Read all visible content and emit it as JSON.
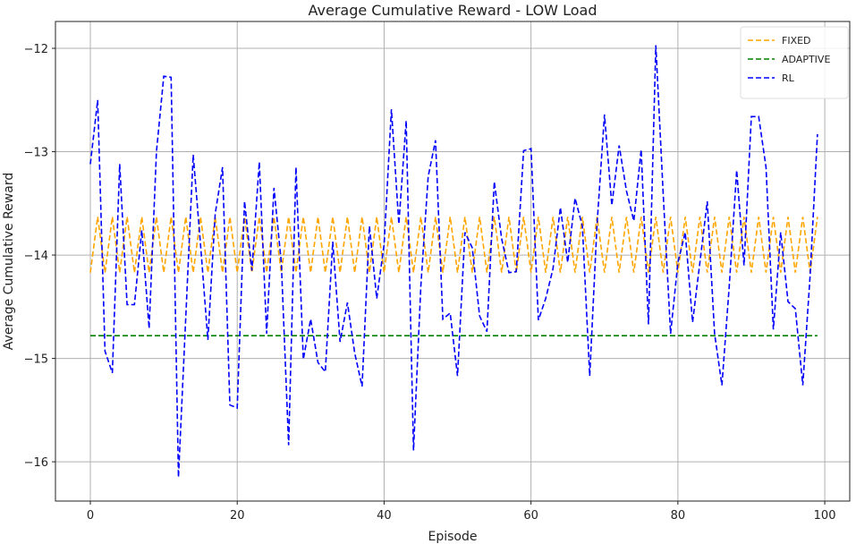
{
  "chart_data": {
    "type": "line",
    "title": "Average Cumulative Reward - LOW Load",
    "xlabel": "Episode",
    "ylabel": "Average Cumulative Reward",
    "xlim": [
      -4.75,
      103.4
    ],
    "ylim": [
      -16.38,
      -11.74
    ],
    "xticks": [
      0,
      20,
      40,
      60,
      80,
      100
    ],
    "yticks": [
      -12,
      -13,
      -14,
      -15,
      -16
    ],
    "ytick_labels": [
      "−12",
      "−13",
      "−14",
      "−15",
      "−16"
    ],
    "grid": true,
    "legend_position": "top-right",
    "x_start": 0,
    "series": [
      {
        "name": "FIXED",
        "color": "#ffa500",
        "style": "dashed",
        "pattern": [
          -14.17,
          -13.63
        ],
        "length": 100
      },
      {
        "name": "ADAPTIVE",
        "color": "#008000",
        "style": "dashed",
        "constant": -14.78,
        "length": 100
      },
      {
        "name": "RL",
        "color": "#0000ff",
        "style": "dashed",
        "values": [
          -13.12,
          -12.5,
          -14.93,
          -15.14,
          -13.12,
          -14.48,
          -14.48,
          -13.76,
          -14.71,
          -13.0,
          -12.27,
          -12.28,
          -16.15,
          -14.6,
          -13.03,
          -13.9,
          -14.82,
          -13.6,
          -13.15,
          -15.45,
          -15.48,
          -13.48,
          -14.15,
          -13.1,
          -14.76,
          -13.35,
          -14.07,
          -15.84,
          -13.15,
          -15.01,
          -14.62,
          -15.04,
          -15.13,
          -13.87,
          -14.84,
          -14.46,
          -14.95,
          -15.27,
          -13.72,
          -14.42,
          -13.9,
          -12.59,
          -13.7,
          -12.7,
          -15.89,
          -14.3,
          -13.24,
          -12.89,
          -14.62,
          -14.56,
          -15.17,
          -13.78,
          -13.93,
          -14.59,
          -14.74,
          -13.29,
          -13.84,
          -14.17,
          -14.16,
          -12.99,
          -12.97,
          -14.63,
          -14.42,
          -14.13,
          -13.54,
          -14.07,
          -13.45,
          -13.72,
          -15.17,
          -13.7,
          -12.64,
          -13.52,
          -12.94,
          -13.38,
          -13.67,
          -12.98,
          -14.67,
          -11.97,
          -13.4,
          -14.76,
          -14.07,
          -13.78,
          -14.65,
          -14.07,
          -13.48,
          -14.76,
          -15.26,
          -14.3,
          -13.18,
          -14.1,
          -12.66,
          -12.66,
          -13.15,
          -14.72,
          -13.78,
          -14.45,
          -14.52,
          -15.26,
          -14.2,
          -12.83
        ]
      }
    ]
  }
}
